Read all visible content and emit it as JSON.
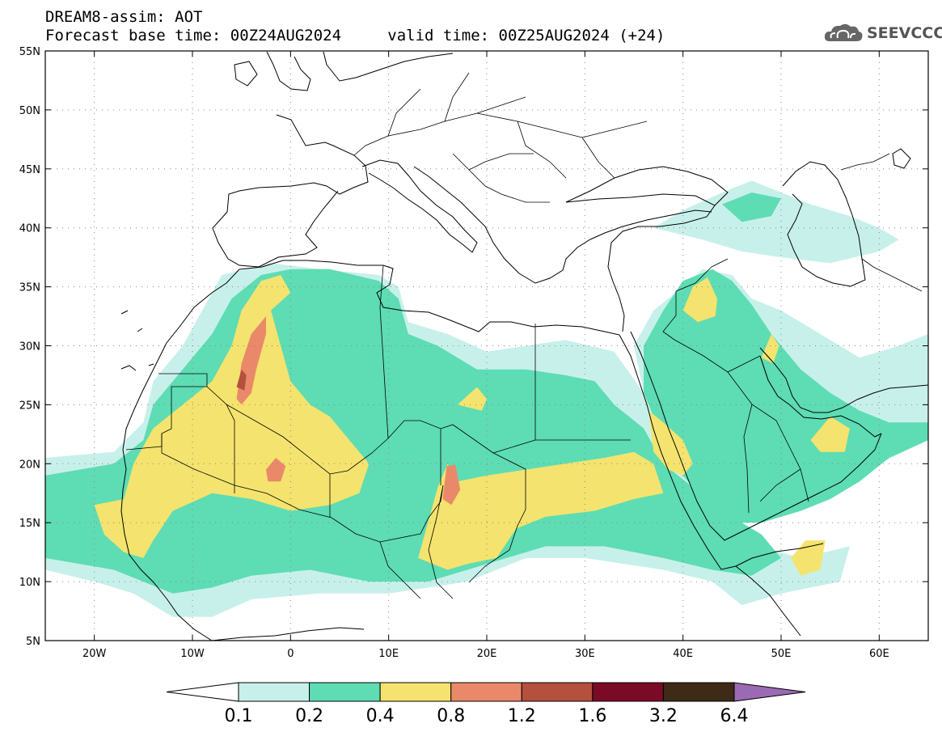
{
  "header": {
    "title": "DREAM8-assim: AOT",
    "base_time_label": "Forecast base time: 00Z24AUG2024",
    "valid_time_label": "valid time: 00Z25AUG2024 (+24)"
  },
  "logo": {
    "text": "SEEVCCC",
    "icon": "cloud-icon"
  },
  "map": {
    "lon_range": [
      -25,
      65
    ],
    "lat_range": [
      5,
      55
    ],
    "grid": true,
    "lat_ticks": [
      {
        "value": 5,
        "label": "5N"
      },
      {
        "value": 10,
        "label": "10N"
      },
      {
        "value": 15,
        "label": "15N"
      },
      {
        "value": 20,
        "label": "20N"
      },
      {
        "value": 25,
        "label": "25N"
      },
      {
        "value": 30,
        "label": "30N"
      },
      {
        "value": 35,
        "label": "35N"
      },
      {
        "value": 40,
        "label": "40N"
      },
      {
        "value": 45,
        "label": "45N"
      },
      {
        "value": 50,
        "label": "50N"
      },
      {
        "value": 55,
        "label": "55N"
      }
    ],
    "lon_ticks": [
      {
        "value": -20,
        "label": "20W"
      },
      {
        "value": -10,
        "label": "10W"
      },
      {
        "value": 0,
        "label": "0"
      },
      {
        "value": 10,
        "label": "10E"
      },
      {
        "value": 20,
        "label": "20E"
      },
      {
        "value": 30,
        "label": "30E"
      },
      {
        "value": 40,
        "label": "40E"
      },
      {
        "value": 50,
        "label": "50E"
      },
      {
        "value": 60,
        "label": "60E"
      }
    ]
  },
  "colorbar": {
    "colors": [
      "#ffffff",
      "#c8f0ea",
      "#5edcb4",
      "#f4e36e",
      "#e9896a",
      "#b4503e",
      "#7a0a26",
      "#3e2a16",
      "#9a6ab4"
    ],
    "labels": [
      "0.1",
      "0.2",
      "0.4",
      "0.8",
      "1.2",
      "1.6",
      "3.2",
      "6.4"
    ]
  },
  "aot_regions": [
    {
      "level": 1,
      "points": [
        [
          -25,
          20.5
        ],
        [
          -18,
          21
        ],
        [
          -15,
          23.5
        ],
        [
          -14,
          27
        ],
        [
          -11,
          30
        ],
        [
          -9,
          33
        ],
        [
          -7,
          36
        ],
        [
          -2,
          37
        ],
        [
          3,
          36.5
        ],
        [
          9,
          36
        ],
        [
          11,
          35
        ],
        [
          12,
          32
        ],
        [
          16,
          31
        ],
        [
          20,
          29.5
        ],
        [
          28,
          30.5
        ],
        [
          33,
          29.5
        ],
        [
          36,
          26
        ],
        [
          38,
          22
        ],
        [
          42,
          19
        ],
        [
          44,
          16
        ],
        [
          48,
          13
        ],
        [
          52,
          12
        ],
        [
          57,
          13
        ],
        [
          56,
          10
        ],
        [
          50,
          9
        ],
        [
          46,
          8
        ],
        [
          43,
          10
        ],
        [
          38,
          11
        ],
        [
          30,
          12
        ],
        [
          24,
          12
        ],
        [
          18,
          10
        ],
        [
          10,
          9
        ],
        [
          3,
          9
        ],
        [
          -4,
          8.5
        ],
        [
          -8,
          7
        ],
        [
          -12,
          7
        ],
        [
          -16,
          9
        ],
        [
          -20,
          10
        ],
        [
          -25,
          11
        ]
      ]
    },
    {
      "level": 1,
      "points": [
        [
          37,
          33
        ],
        [
          40,
          35
        ],
        [
          42,
          36.5
        ],
        [
          45,
          36
        ],
        [
          47,
          34
        ],
        [
          50,
          33
        ],
        [
          54,
          31
        ],
        [
          58,
          29
        ],
        [
          62,
          30
        ],
        [
          65,
          31
        ],
        [
          65,
          22
        ],
        [
          60,
          20
        ],
        [
          55,
          17
        ],
        [
          52,
          16
        ],
        [
          48,
          15
        ],
        [
          44,
          16
        ],
        [
          42,
          19
        ],
        [
          38,
          22
        ],
        [
          36,
          26
        ],
        [
          35,
          30
        ]
      ]
    },
    {
      "level": 1,
      "points": [
        [
          37,
          40
        ],
        [
          40,
          41.5
        ],
        [
          44,
          43
        ],
        [
          47,
          44
        ],
        [
          50,
          43
        ],
        [
          53,
          42
        ],
        [
          57,
          41
        ],
        [
          60,
          40
        ],
        [
          62,
          39
        ],
        [
          60,
          38
        ],
        [
          55,
          37
        ],
        [
          50,
          37.5
        ],
        [
          46,
          38
        ],
        [
          42,
          39
        ]
      ]
    },
    {
      "level": 2,
      "points": [
        [
          -25,
          19
        ],
        [
          -18,
          20
        ],
        [
          -15,
          22
        ],
        [
          -14,
          25
        ],
        [
          -11,
          28
        ],
        [
          -8,
          31
        ],
        [
          -6,
          34
        ],
        [
          -3,
          36
        ],
        [
          0,
          36.5
        ],
        [
          4,
          36.5
        ],
        [
          9,
          35.5
        ],
        [
          11,
          34
        ],
        [
          12,
          31
        ],
        [
          15,
          30
        ],
        [
          19,
          28
        ],
        [
          24,
          28
        ],
        [
          28,
          27.5
        ],
        [
          31,
          27
        ],
        [
          33,
          25
        ],
        [
          36,
          23
        ],
        [
          38,
          20
        ],
        [
          41,
          18
        ],
        [
          44,
          16
        ],
        [
          48,
          14
        ],
        [
          50,
          12
        ],
        [
          47,
          10.5
        ],
        [
          43,
          11
        ],
        [
          38,
          12
        ],
        [
          32,
          13
        ],
        [
          26,
          13
        ],
        [
          20,
          11.5
        ],
        [
          14,
          10
        ],
        [
          8,
          10
        ],
        [
          2,
          11
        ],
        [
          -4,
          10.5
        ],
        [
          -8,
          9.5
        ],
        [
          -12,
          9
        ],
        [
          -15,
          10
        ],
        [
          -18,
          11
        ],
        [
          -25,
          12
        ]
      ]
    },
    {
      "level": 2,
      "points": [
        [
          36,
          30
        ],
        [
          38,
          33
        ],
        [
          40,
          35.5
        ],
        [
          43,
          36.5
        ],
        [
          45,
          35.5
        ],
        [
          47,
          33.5
        ],
        [
          49,
          31
        ],
        [
          52,
          28
        ],
        [
          55,
          26
        ],
        [
          58,
          24.5
        ],
        [
          61,
          23.5
        ],
        [
          65,
          23.5
        ],
        [
          65,
          22
        ],
        [
          61,
          20.5
        ],
        [
          58,
          18.5
        ],
        [
          55,
          17
        ],
        [
          52,
          16
        ],
        [
          48,
          15
        ],
        [
          45,
          15
        ],
        [
          42,
          17
        ],
        [
          40,
          19
        ],
        [
          38,
          22
        ],
        [
          36,
          26
        ]
      ]
    },
    {
      "level": 2,
      "points": [
        [
          44,
          42
        ],
        [
          47,
          43
        ],
        [
          50,
          42.5
        ],
        [
          49,
          41
        ],
        [
          46,
          40.5
        ]
      ]
    },
    {
      "level": 3,
      "points": [
        [
          -20,
          16.5
        ],
        [
          -17,
          17
        ],
        [
          -16,
          20
        ],
        [
          -14,
          23
        ],
        [
          -11,
          25
        ],
        [
          -8,
          27
        ],
        [
          -6,
          30
        ],
        [
          -5,
          33
        ],
        [
          -3,
          35.5
        ],
        [
          -1,
          36
        ],
        [
          0,
          34.5
        ],
        [
          -2,
          33
        ],
        [
          -1,
          30
        ],
        [
          0,
          27
        ],
        [
          2,
          25
        ],
        [
          4,
          24
        ],
        [
          6,
          22
        ],
        [
          8,
          20
        ],
        [
          7,
          17.5
        ],
        [
          4,
          16.5
        ],
        [
          0,
          16
        ],
        [
          -4,
          17
        ],
        [
          -8,
          17.5
        ],
        [
          -12,
          16
        ],
        [
          -14,
          13.5
        ],
        [
          -15,
          12
        ],
        [
          -17,
          12.5
        ],
        [
          -19,
          14
        ]
      ]
    },
    {
      "level": 3,
      "points": [
        [
          13,
          12
        ],
        [
          14,
          15
        ],
        [
          15,
          18
        ],
        [
          16,
          20
        ],
        [
          17,
          18.5
        ],
        [
          20,
          19
        ],
        [
          24,
          19.5
        ],
        [
          28,
          20
        ],
        [
          32,
          20.5
        ],
        [
          35,
          21
        ],
        [
          37,
          20
        ],
        [
          38,
          17.5
        ],
        [
          35,
          17
        ],
        [
          31,
          16
        ],
        [
          26,
          15.5
        ],
        [
          23,
          14.5
        ],
        [
          21,
          12
        ],
        [
          18,
          11.5
        ],
        [
          16,
          11
        ]
      ]
    },
    {
      "level": 3,
      "points": [
        [
          40,
          33
        ],
        [
          41,
          35
        ],
        [
          42.5,
          35.8
        ],
        [
          43.5,
          34
        ],
        [
          43.3,
          32.5
        ],
        [
          41.5,
          32
        ]
      ]
    },
    {
      "level": 3,
      "points": [
        [
          36.5,
          24.5
        ],
        [
          38,
          23.5
        ],
        [
          40,
          22
        ],
        [
          41,
          20
        ],
        [
          40,
          19
        ],
        [
          38.5,
          19.5
        ],
        [
          37,
          21
        ]
      ]
    },
    {
      "level": 3,
      "points": [
        [
          51,
          12
        ],
        [
          52.5,
          13.5
        ],
        [
          54.5,
          13.5
        ],
        [
          54,
          11
        ],
        [
          52,
          10.5
        ]
      ]
    },
    {
      "level": 3,
      "points": [
        [
          53,
          22
        ],
        [
          55,
          24
        ],
        [
          57,
          23
        ],
        [
          56.5,
          21
        ],
        [
          54,
          21
        ]
      ]
    },
    {
      "level": 3,
      "points": [
        [
          17,
          25
        ],
        [
          19,
          26.5
        ],
        [
          20,
          25.5
        ],
        [
          19.5,
          24.5
        ]
      ]
    },
    {
      "level": 3,
      "points": [
        [
          48,
          29
        ],
        [
          49,
          31
        ],
        [
          49.8,
          30
        ],
        [
          49.2,
          28.5
        ]
      ]
    },
    {
      "level": 4,
      "points": [
        [
          -5.5,
          25.5
        ],
        [
          -5,
          28.5
        ],
        [
          -4,
          31
        ],
        [
          -2.5,
          32.5
        ],
        [
          -2.5,
          31
        ],
        [
          -3.5,
          28
        ],
        [
          -4,
          26
        ],
        [
          -5,
          25
        ]
      ]
    },
    {
      "level": 4,
      "points": [
        [
          -2.5,
          19.5
        ],
        [
          -1.5,
          20.5
        ],
        [
          -0.5,
          19.8
        ],
        [
          -1,
          18.5
        ],
        [
          -2.3,
          18.5
        ]
      ]
    },
    {
      "level": 4,
      "points": [
        [
          15.5,
          17
        ],
        [
          15.9,
          19.8
        ],
        [
          16.8,
          19.9
        ],
        [
          17.3,
          17.8
        ],
        [
          16.4,
          16.5
        ]
      ]
    },
    {
      "level": 5,
      "points": [
        [
          -5.5,
          26.5
        ],
        [
          -5,
          28
        ],
        [
          -4.5,
          27.5
        ],
        [
          -4.7,
          26.2
        ]
      ]
    }
  ]
}
